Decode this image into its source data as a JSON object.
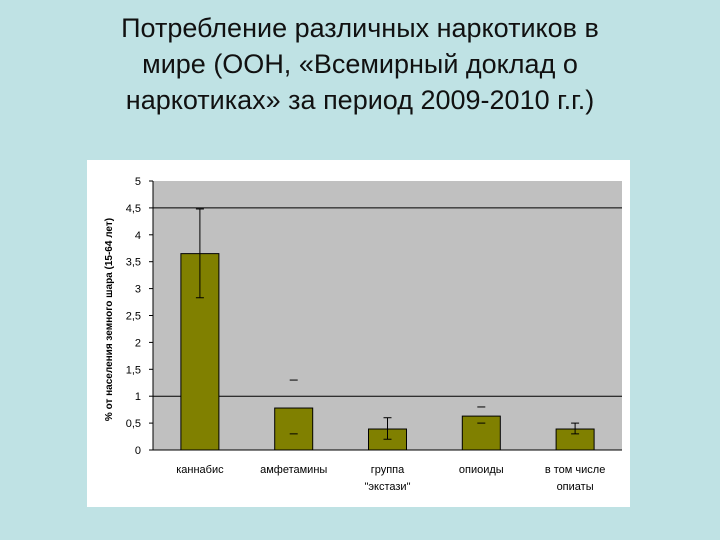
{
  "slide": {
    "title": "Потребление различных наркотиков в\nмире (ООН, «Всемирный доклад о\nнаркотиках» за период 2009-2010 г.г.)"
  },
  "colors": {
    "background": "#bfe2e4",
    "plot_area": "#c0c0c0",
    "bar_fill": "#808000"
  },
  "chart_data": {
    "type": "bar",
    "title": "",
    "xlabel": "",
    "ylabel": "% от населения земного шара (15-64 лет)",
    "ylim": [
      0,
      5
    ],
    "yticks": [
      {
        "value": 0,
        "label": "0"
      },
      {
        "value": 0.5,
        "label": "0,5"
      },
      {
        "value": 1,
        "label": "1"
      },
      {
        "value": 1.5,
        "label": "1,5"
      },
      {
        "value": 2,
        "label": "2"
      },
      {
        "value": 2.5,
        "label": "2,5"
      },
      {
        "value": 3,
        "label": "3"
      },
      {
        "value": 3.5,
        "label": "3,5"
      },
      {
        "value": 4,
        "label": "4"
      },
      {
        "value": 4.5,
        "label": "4,5"
      },
      {
        "value": 5,
        "label": "5"
      }
    ],
    "gridlines_y": [
      1,
      4.5
    ],
    "categories": [
      [
        "каннабис"
      ],
      [
        "амфетамины"
      ],
      [
        "группа",
        "\"экстази\""
      ],
      [
        "опиоиды"
      ],
      [
        "в том числе",
        "опиаты"
      ]
    ],
    "values": [
      3.65,
      0.78,
      0.39,
      0.63,
      0.39
    ],
    "error_bars": [
      {
        "low": 2.83,
        "high": 4.48,
        "style": "whisker"
      },
      {
        "low": 0.3,
        "high": 1.3,
        "style": "caps"
      },
      {
        "low": 0.2,
        "high": 0.6,
        "style": "whisker"
      },
      {
        "low": 0.5,
        "high": 0.8,
        "style": "caps"
      },
      {
        "low": 0.3,
        "high": 0.5,
        "style": "whisker"
      }
    ]
  }
}
